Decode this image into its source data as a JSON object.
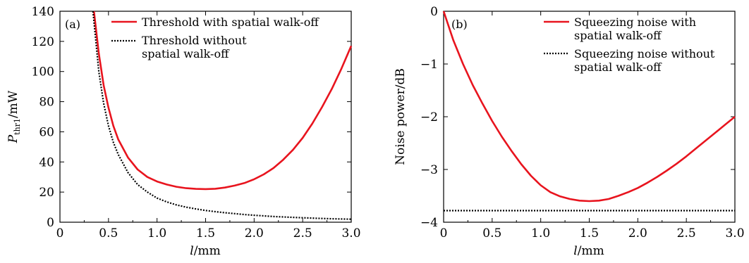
{
  "chart_data": [
    {
      "type": "line",
      "panel_label": "(a)",
      "xlabel_var": "l",
      "xlabel_unit": "/mm",
      "ylabel_var": "P",
      "ylabel_sub": "thr1",
      "ylabel_unit": "/mW",
      "xlim": [
        0,
        3.0
      ],
      "ylim": [
        0,
        140
      ],
      "xticks": [
        "0",
        "0.5",
        "1.0",
        "1.5",
        "2.0",
        "2.5",
        "3.0"
      ],
      "yticks": [
        "0",
        "20",
        "40",
        "60",
        "80",
        "100",
        "120",
        "140"
      ],
      "legend_placement": "top-right",
      "series": [
        {
          "name": "Threshold with spatial walk-off",
          "color": "#e8141e",
          "style": "solid",
          "x": [
            0.35,
            0.4,
            0.45,
            0.5,
            0.55,
            0.6,
            0.7,
            0.8,
            0.9,
            1.0,
            1.1,
            1.2,
            1.3,
            1.4,
            1.5,
            1.6,
            1.7,
            1.8,
            1.9,
            2.0,
            2.1,
            2.2,
            2.3,
            2.4,
            2.5,
            2.6,
            2.7,
            2.8,
            2.9,
            3.0
          ],
          "y": [
            140,
            112,
            91,
            76,
            64,
            55,
            43,
            35,
            30,
            27,
            25,
            23.5,
            22.6,
            22.1,
            22,
            22.2,
            23,
            24.3,
            26,
            28.5,
            31.8,
            36,
            41.5,
            48,
            56,
            65.5,
            76.5,
            88.5,
            102,
            117
          ]
        },
        {
          "name": "Threshold without spatial walk-off",
          "color": "#000000",
          "style": "dotted",
          "x": [
            0.34,
            0.4,
            0.45,
            0.5,
            0.55,
            0.6,
            0.7,
            0.8,
            0.9,
            1.0,
            1.1,
            1.2,
            1.3,
            1.4,
            1.5,
            1.6,
            1.7,
            1.8,
            1.9,
            2.0,
            2.2,
            2.4,
            2.6,
            2.8,
            3.0
          ],
          "y": [
            140,
            100,
            79,
            64,
            53,
            45,
            33,
            25,
            20,
            16,
            13.5,
            11.5,
            10,
            8.8,
            7.8,
            7,
            6.3,
            5.7,
            5.1,
            4.6,
            3.8,
            3.2,
            2.7,
            2.3,
            2
          ]
        }
      ]
    },
    {
      "type": "line",
      "panel_label": "(b)",
      "xlabel_var": "l",
      "xlabel_unit": "/mm",
      "ylabel": "Noise power/dB",
      "xlim": [
        0,
        3.0
      ],
      "ylim": [
        -4,
        0
      ],
      "xticks": [
        "0",
        "0.5",
        "1.0",
        "1.5",
        "2.0",
        "2.5",
        "3.0"
      ],
      "yticks": [
        "0",
        "−1",
        "−2",
        "−3",
        "−4"
      ],
      "legend_placement": "top-right",
      "series": [
        {
          "name": "Squeezing noise with spatial walk-off",
          "color": "#e8141e",
          "style": "solid",
          "x": [
            0,
            0.1,
            0.2,
            0.3,
            0.4,
            0.5,
            0.6,
            0.7,
            0.8,
            0.9,
            1.0,
            1.1,
            1.2,
            1.3,
            1.4,
            1.5,
            1.6,
            1.7,
            1.8,
            1.9,
            2.0,
            2.1,
            2.2,
            2.3,
            2.4,
            2.5,
            2.6,
            2.7,
            2.8,
            2.9,
            3.0
          ],
          "y": [
            0,
            -0.55,
            -1.0,
            -1.4,
            -1.75,
            -2.08,
            -2.38,
            -2.65,
            -2.9,
            -3.12,
            -3.3,
            -3.43,
            -3.51,
            -3.56,
            -3.59,
            -3.6,
            -3.59,
            -3.56,
            -3.5,
            -3.43,
            -3.35,
            -3.25,
            -3.14,
            -3.02,
            -2.89,
            -2.75,
            -2.6,
            -2.45,
            -2.3,
            -2.15,
            -2.0
          ]
        },
        {
          "name": "Squeezing noise without spatial walk-off",
          "color": "#000000",
          "style": "dotted",
          "x": [
            0,
            3.0
          ],
          "y": [
            -3.78,
            -3.78
          ]
        }
      ]
    }
  ],
  "legend_a": {
    "line1": "Threshold with spatial walk-off",
    "line2a": "Threshold without",
    "line2b": "spatial walk-off"
  },
  "legend_b": {
    "line1a": "Squeezing noise with",
    "line1b": "spatial walk-off",
    "line2a": "Squeezing noise without",
    "line2b": "spatial walk-off"
  }
}
